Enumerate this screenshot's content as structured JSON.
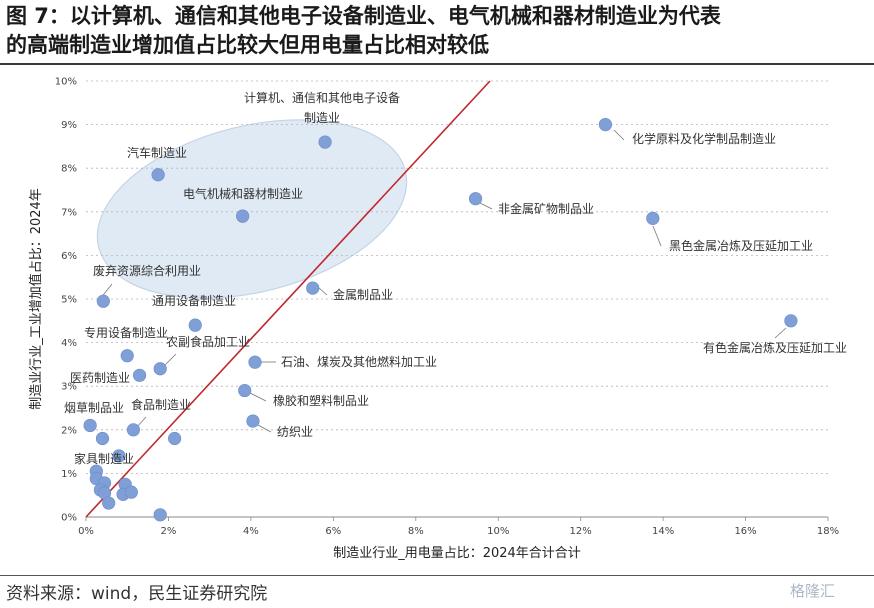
{
  "title": {
    "line1": "图 7：以计算机、通信和其他电子设备制造业、电气机械和器材制造业为代表",
    "line2": "的高端制造业增加值占比较大但用电量占比相对较低"
  },
  "source": "资料来源：wind，民生证券研究院",
  "watermark": "格隆汇",
  "chart_data": {
    "type": "scatter",
    "xlabel": "制造业行业_用电量占比：2024年合计合计",
    "ylabel": "制造业行业_工业增加值占比：2024年",
    "xlim": [
      0,
      18
    ],
    "ylim": [
      0,
      10
    ],
    "x_ticks": [
      "0%",
      "2%",
      "4%",
      "6%",
      "8%",
      "10%",
      "12%",
      "14%",
      "16%",
      "18%"
    ],
    "y_ticks": [
      "0%",
      "1%",
      "2%",
      "3%",
      "4%",
      "5%",
      "6%",
      "7%",
      "8%",
      "9%",
      "10%"
    ],
    "point_color": "#7f9fd6",
    "reference_line": {
      "color": "#c0272d",
      "from": [
        0,
        0
      ],
      "to": [
        9.8,
        10
      ]
    },
    "highlight_ellipse": {
      "fill": "#dbe6f3",
      "stroke": "#c5d4e6"
    },
    "points": [
      {
        "x": 5.8,
        "y": 8.6,
        "label": "计算机、通信和其他电子设备\n制造业"
      },
      {
        "x": 1.75,
        "y": 7.85,
        "label": "汽车制造业"
      },
      {
        "x": 3.8,
        "y": 6.9,
        "label": "电气机械和器材制造业"
      },
      {
        "x": 12.6,
        "y": 9.0,
        "label": "化学原料及化学制品制造业"
      },
      {
        "x": 9.45,
        "y": 7.3,
        "label": "非金属矿物制品业"
      },
      {
        "x": 13.75,
        "y": 6.85,
        "label": "黑色金属冶炼及压延加工业"
      },
      {
        "x": 17.1,
        "y": 4.5,
        "label": "有色金属冶炼及压延加工业"
      },
      {
        "x": 0.42,
        "y": 4.95,
        "label": "废弃资源综合利用业"
      },
      {
        "x": 5.5,
        "y": 5.25,
        "label": "金属制品业"
      },
      {
        "x": 2.65,
        "y": 4.4,
        "label": "通用设备制造业"
      },
      {
        "x": 1.0,
        "y": 3.7,
        "label": "专用设备制造业"
      },
      {
        "x": 1.8,
        "y": 3.4,
        "label": "农副食品加工业"
      },
      {
        "x": 4.1,
        "y": 3.55,
        "label": "石油、煤炭及其他燃料加工业"
      },
      {
        "x": 1.3,
        "y": 3.25,
        "label": "医药制造业"
      },
      {
        "x": 3.85,
        "y": 2.9,
        "label": "橡胶和塑料制品业"
      },
      {
        "x": 0.1,
        "y": 2.1,
        "label": "烟草制品业"
      },
      {
        "x": 1.15,
        "y": 2.0,
        "label": "食品制造业"
      },
      {
        "x": 4.05,
        "y": 2.2,
        "label": "纺织业"
      },
      {
        "x": 0.8,
        "y": 1.4,
        "label": "家具制造业"
      },
      {
        "x": 0.4,
        "y": 1.8,
        "label": ""
      },
      {
        "x": 2.15,
        "y": 1.8,
        "label": ""
      },
      {
        "x": 0.25,
        "y": 1.05,
        "label": ""
      },
      {
        "x": 0.25,
        "y": 0.88,
        "label": ""
      },
      {
        "x": 0.45,
        "y": 0.78,
        "label": ""
      },
      {
        "x": 0.35,
        "y": 0.62,
        "label": ""
      },
      {
        "x": 0.45,
        "y": 0.55,
        "label": ""
      },
      {
        "x": 0.55,
        "y": 0.32,
        "label": ""
      },
      {
        "x": 0.95,
        "y": 0.75,
        "label": ""
      },
      {
        "x": 0.9,
        "y": 0.52,
        "label": ""
      },
      {
        "x": 1.1,
        "y": 0.57,
        "label": ""
      },
      {
        "x": 1.8,
        "y": 0.05,
        "label": ""
      }
    ]
  }
}
